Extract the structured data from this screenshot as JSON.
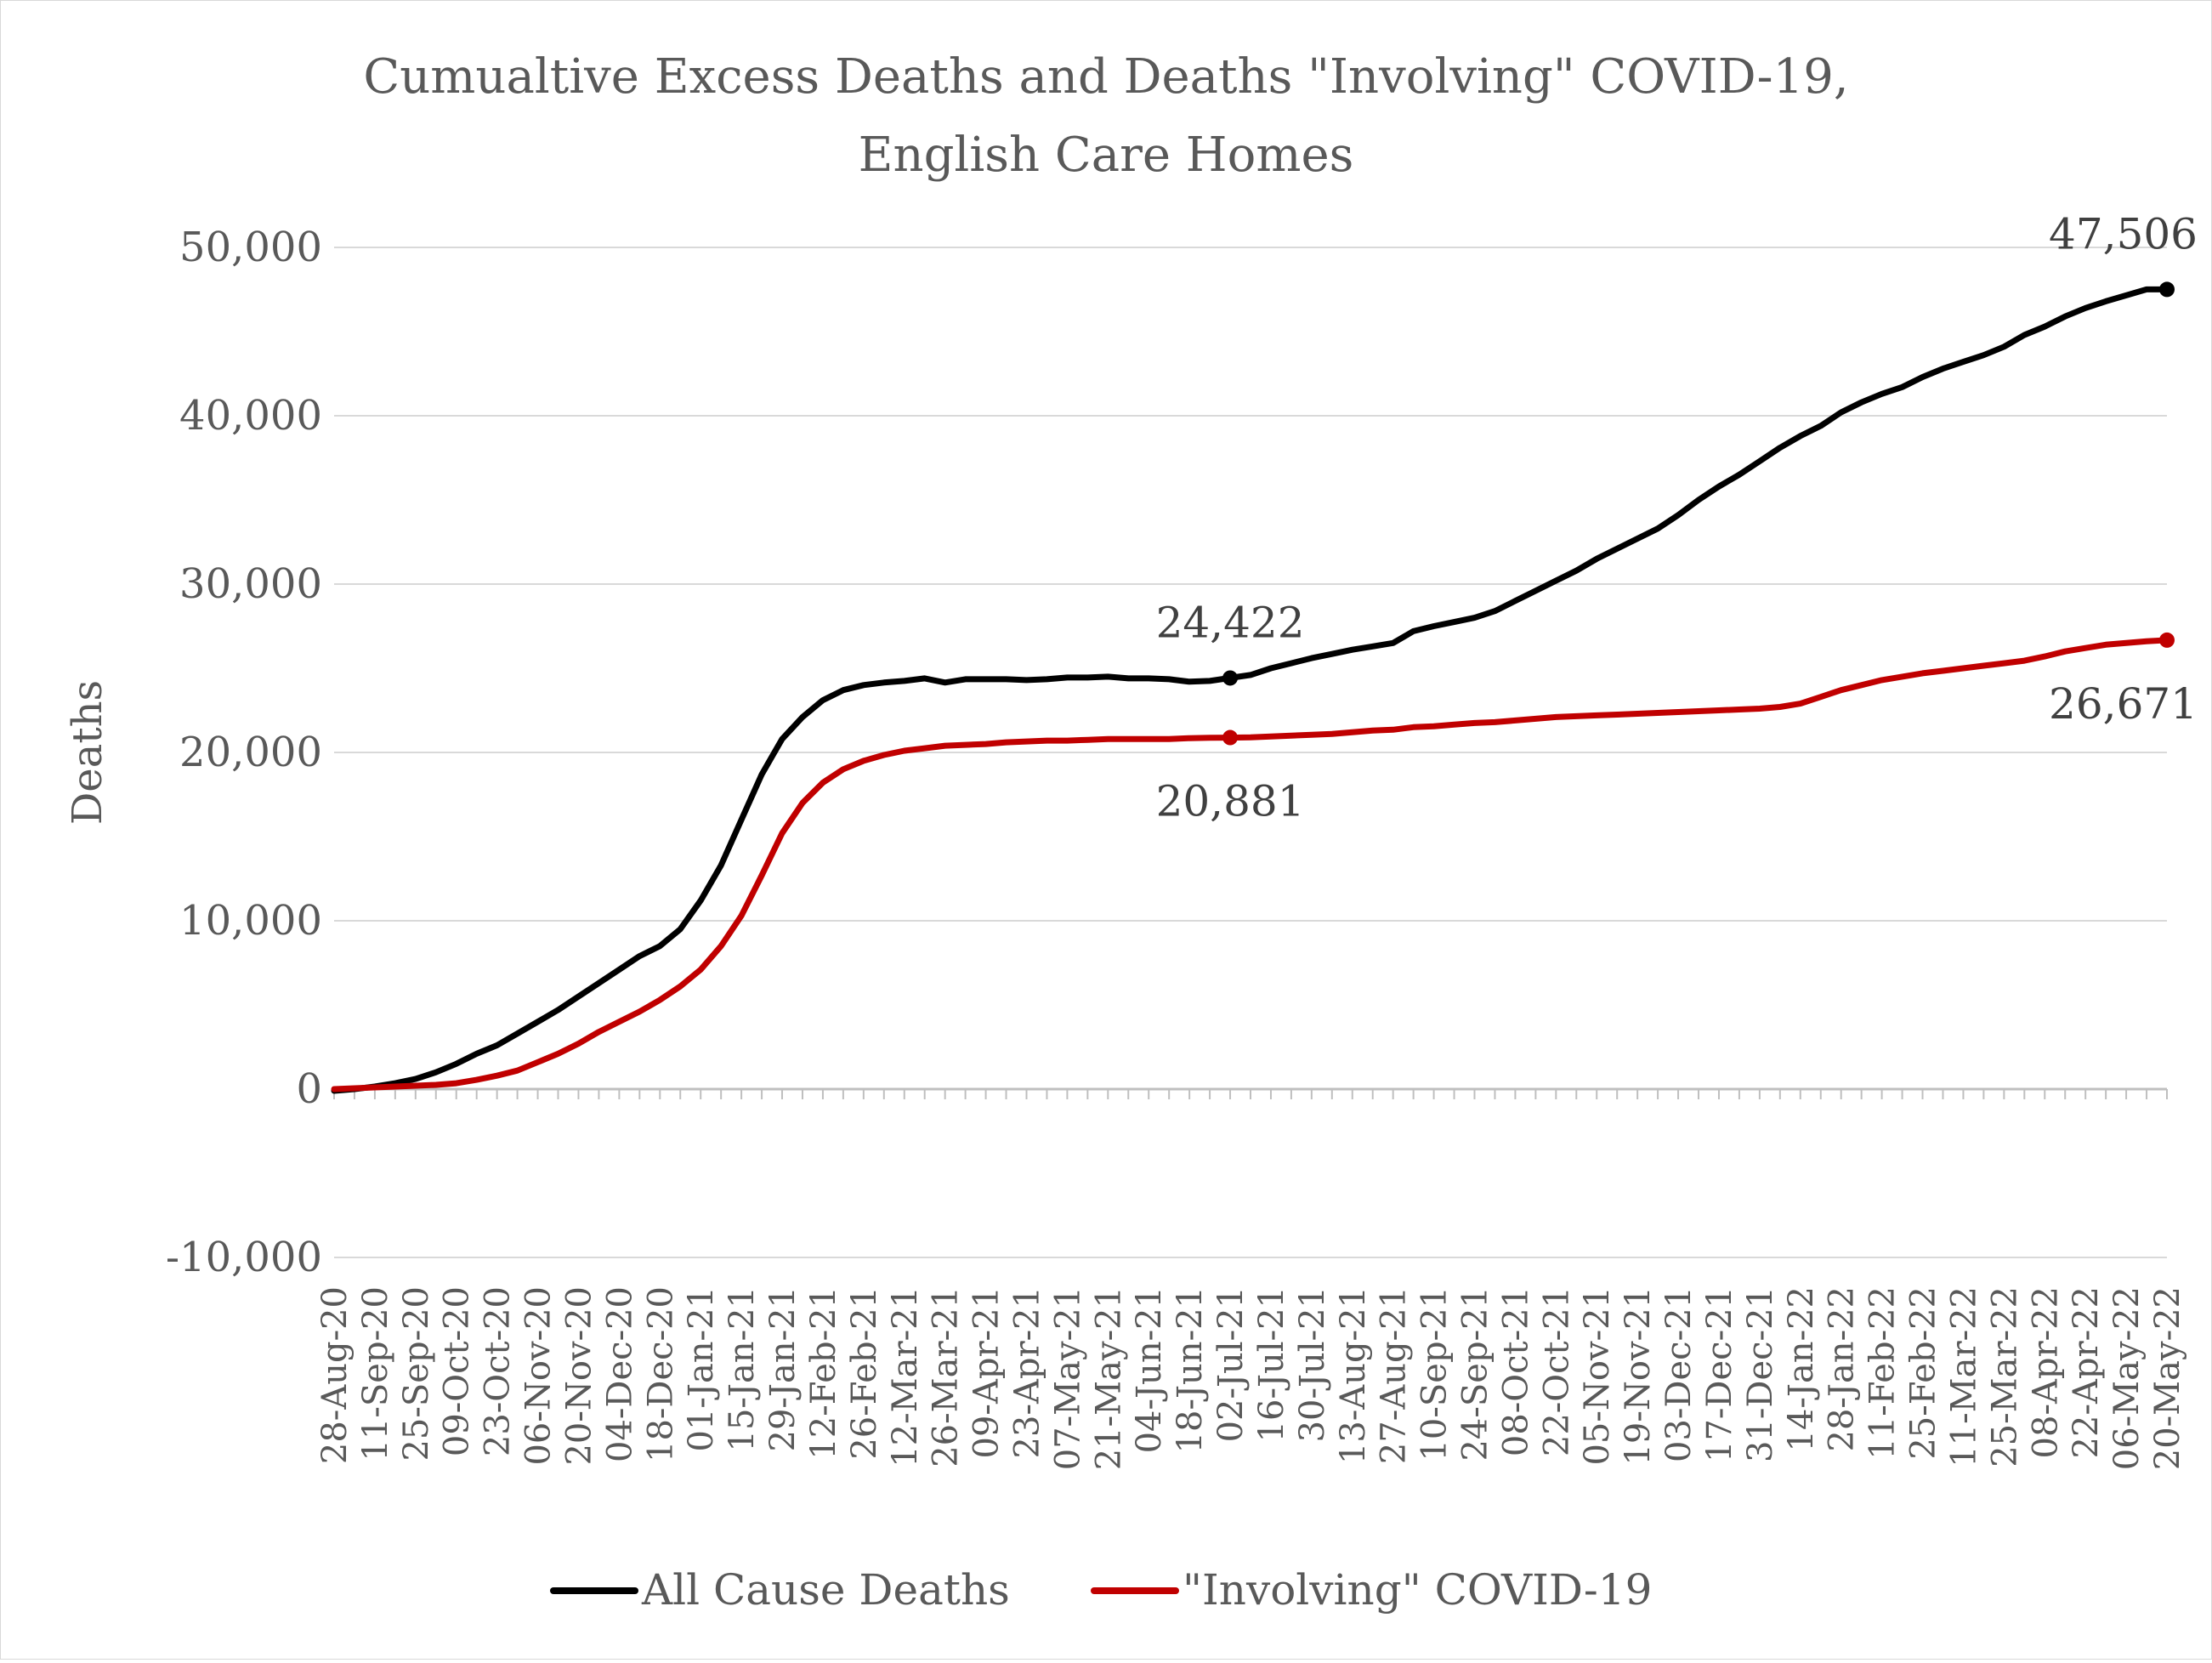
{
  "chart_data": {
    "type": "line",
    "title_lines": [
      "Cumualtive Excess Deaths and Deaths \"Involving\" COVID-19,",
      "English Care Homes"
    ],
    "xlabel": "",
    "ylabel": "Deaths",
    "ylim": [
      -10000,
      50000
    ],
    "yticks": [
      50000,
      40000,
      30000,
      20000,
      10000,
      0,
      -10000
    ],
    "ytick_labels": [
      "50,000",
      "40,000",
      "30,000",
      "20,000",
      "10,000",
      "0",
      "-10,000"
    ],
    "grid": true,
    "legend_position": "bottom",
    "x": [
      "28-Aug-20",
      "04-Sep-20",
      "11-Sep-20",
      "18-Sep-20",
      "25-Sep-20",
      "02-Oct-20",
      "09-Oct-20",
      "16-Oct-20",
      "23-Oct-20",
      "30-Oct-20",
      "06-Nov-20",
      "13-Nov-20",
      "20-Nov-20",
      "27-Nov-20",
      "04-Dec-20",
      "11-Dec-20",
      "18-Dec-20",
      "25-Dec-20",
      "01-Jan-21",
      "08-Jan-21",
      "15-Jan-21",
      "22-Jan-21",
      "29-Jan-21",
      "05-Feb-21",
      "12-Feb-21",
      "19-Feb-21",
      "26-Feb-21",
      "05-Mar-21",
      "12-Mar-21",
      "19-Mar-21",
      "26-Mar-21",
      "02-Apr-21",
      "09-Apr-21",
      "16-Apr-21",
      "23-Apr-21",
      "30-Apr-21",
      "07-May-21",
      "14-May-21",
      "21-May-21",
      "28-May-21",
      "04-Jun-21",
      "11-Jun-21",
      "18-Jun-21",
      "25-Jun-21",
      "02-Jul-21",
      "09-Jul-21",
      "16-Jul-21",
      "23-Jul-21",
      "30-Jul-21",
      "06-Aug-21",
      "13-Aug-21",
      "20-Aug-21",
      "27-Aug-21",
      "03-Sep-21",
      "10-Sep-21",
      "17-Sep-21",
      "24-Sep-21",
      "01-Oct-21",
      "08-Oct-21",
      "15-Oct-21",
      "22-Oct-21",
      "29-Oct-21",
      "05-Nov-21",
      "12-Nov-21",
      "19-Nov-21",
      "26-Nov-21",
      "03-Dec-21",
      "10-Dec-21",
      "17-Dec-21",
      "24-Dec-21",
      "31-Dec-21",
      "07-Jan-22",
      "14-Jan-22",
      "21-Jan-22",
      "28-Jan-22",
      "04-Feb-22",
      "11-Feb-22",
      "18-Feb-22",
      "25-Feb-22",
      "04-Mar-22",
      "11-Mar-22",
      "18-Mar-22",
      "25-Mar-22",
      "01-Apr-22",
      "08-Apr-22",
      "15-Apr-22",
      "22-Apr-22",
      "29-Apr-22",
      "06-May-22",
      "13-May-22",
      "20-May-22"
    ],
    "x_tick_labels": [
      "28-Aug-20",
      "11-Sep-20",
      "25-Sep-20",
      "09-Oct-20",
      "23-Oct-20",
      "06-Nov-20",
      "20-Nov-20",
      "04-Dec-20",
      "18-Dec-20",
      "01-Jan-21",
      "15-Jan-21",
      "29-Jan-21",
      "12-Feb-21",
      "26-Feb-21",
      "12-Mar-21",
      "26-Mar-21",
      "09-Apr-21",
      "23-Apr-21",
      "07-May-21",
      "21-May-21",
      "04-Jun-21",
      "18-Jun-21",
      "02-Jul-21",
      "16-Jul-21",
      "30-Jul-21",
      "13-Aug-21",
      "27-Aug-21",
      "10-Sep-21",
      "24-Sep-21",
      "08-Oct-21",
      "22-Oct-21",
      "05-Nov-21",
      "19-Nov-21",
      "03-Dec-21",
      "17-Dec-21",
      "31-Dec-21",
      "14-Jan-22",
      "28-Jan-22",
      "11-Feb-22",
      "25-Feb-22",
      "11-Mar-22",
      "25-Mar-22",
      "08-Apr-22",
      "22-Apr-22",
      "06-May-22",
      "20-May-22"
    ],
    "series": [
      {
        "name": "All Cause Deaths",
        "color": "#000000",
        "values": [
          -100,
          0,
          150,
          350,
          600,
          1000,
          1500,
          2100,
          2600,
          3300,
          4000,
          4700,
          5500,
          6300,
          7100,
          7900,
          8500,
          9500,
          11200,
          13300,
          16000,
          18700,
          20800,
          22100,
          23100,
          23700,
          24000,
          24150,
          24250,
          24400,
          24150,
          24350,
          24350,
          24350,
          24300,
          24350,
          24450,
          24450,
          24500,
          24400,
          24400,
          24350,
          24200,
          24250,
          24422,
          24600,
          25000,
          25300,
          25600,
          25850,
          26100,
          26300,
          26500,
          27200,
          27500,
          27750,
          28000,
          28400,
          29000,
          29600,
          30200,
          30800,
          31500,
          32100,
          32700,
          33300,
          34100,
          35000,
          35800,
          36500,
          37300,
          38100,
          38800,
          39400,
          40200,
          40800,
          41300,
          41700,
          42300,
          42800,
          43200,
          43600,
          44100,
          44800,
          45300,
          45900,
          46400,
          46800,
          47150,
          47506,
          47506
        ],
        "labels": [
          {
            "x": "02-Jul-21",
            "text": "24,422"
          },
          {
            "x": "20-May-22",
            "text": "47,506"
          }
        ]
      },
      {
        "name": "\"Involving\" COVID-19",
        "color": "#c00000",
        "values": [
          0,
          50,
          100,
          150,
          200,
          250,
          350,
          550,
          800,
          1100,
          1600,
          2100,
          2700,
          3400,
          4000,
          4600,
          5300,
          6100,
          7100,
          8500,
          10300,
          12700,
          15200,
          17000,
          18200,
          19000,
          19500,
          19850,
          20100,
          20250,
          20400,
          20450,
          20500,
          20600,
          20650,
          20700,
          20700,
          20750,
          20800,
          20800,
          20800,
          20800,
          20850,
          20870,
          20881,
          20900,
          20950,
          21000,
          21050,
          21100,
          21200,
          21300,
          21350,
          21500,
          21550,
          21650,
          21750,
          21800,
          21900,
          22000,
          22100,
          22150,
          22200,
          22250,
          22300,
          22350,
          22400,
          22450,
          22500,
          22550,
          22600,
          22700,
          22900,
          23300,
          23700,
          24000,
          24300,
          24500,
          24700,
          24850,
          25000,
          25150,
          25300,
          25450,
          25700,
          26000,
          26200,
          26400,
          26500,
          26600,
          26671
        ],
        "labels": [
          {
            "x": "02-Jul-21",
            "text": "20,881"
          },
          {
            "x": "20-May-22",
            "text": "26,671"
          }
        ]
      }
    ]
  }
}
